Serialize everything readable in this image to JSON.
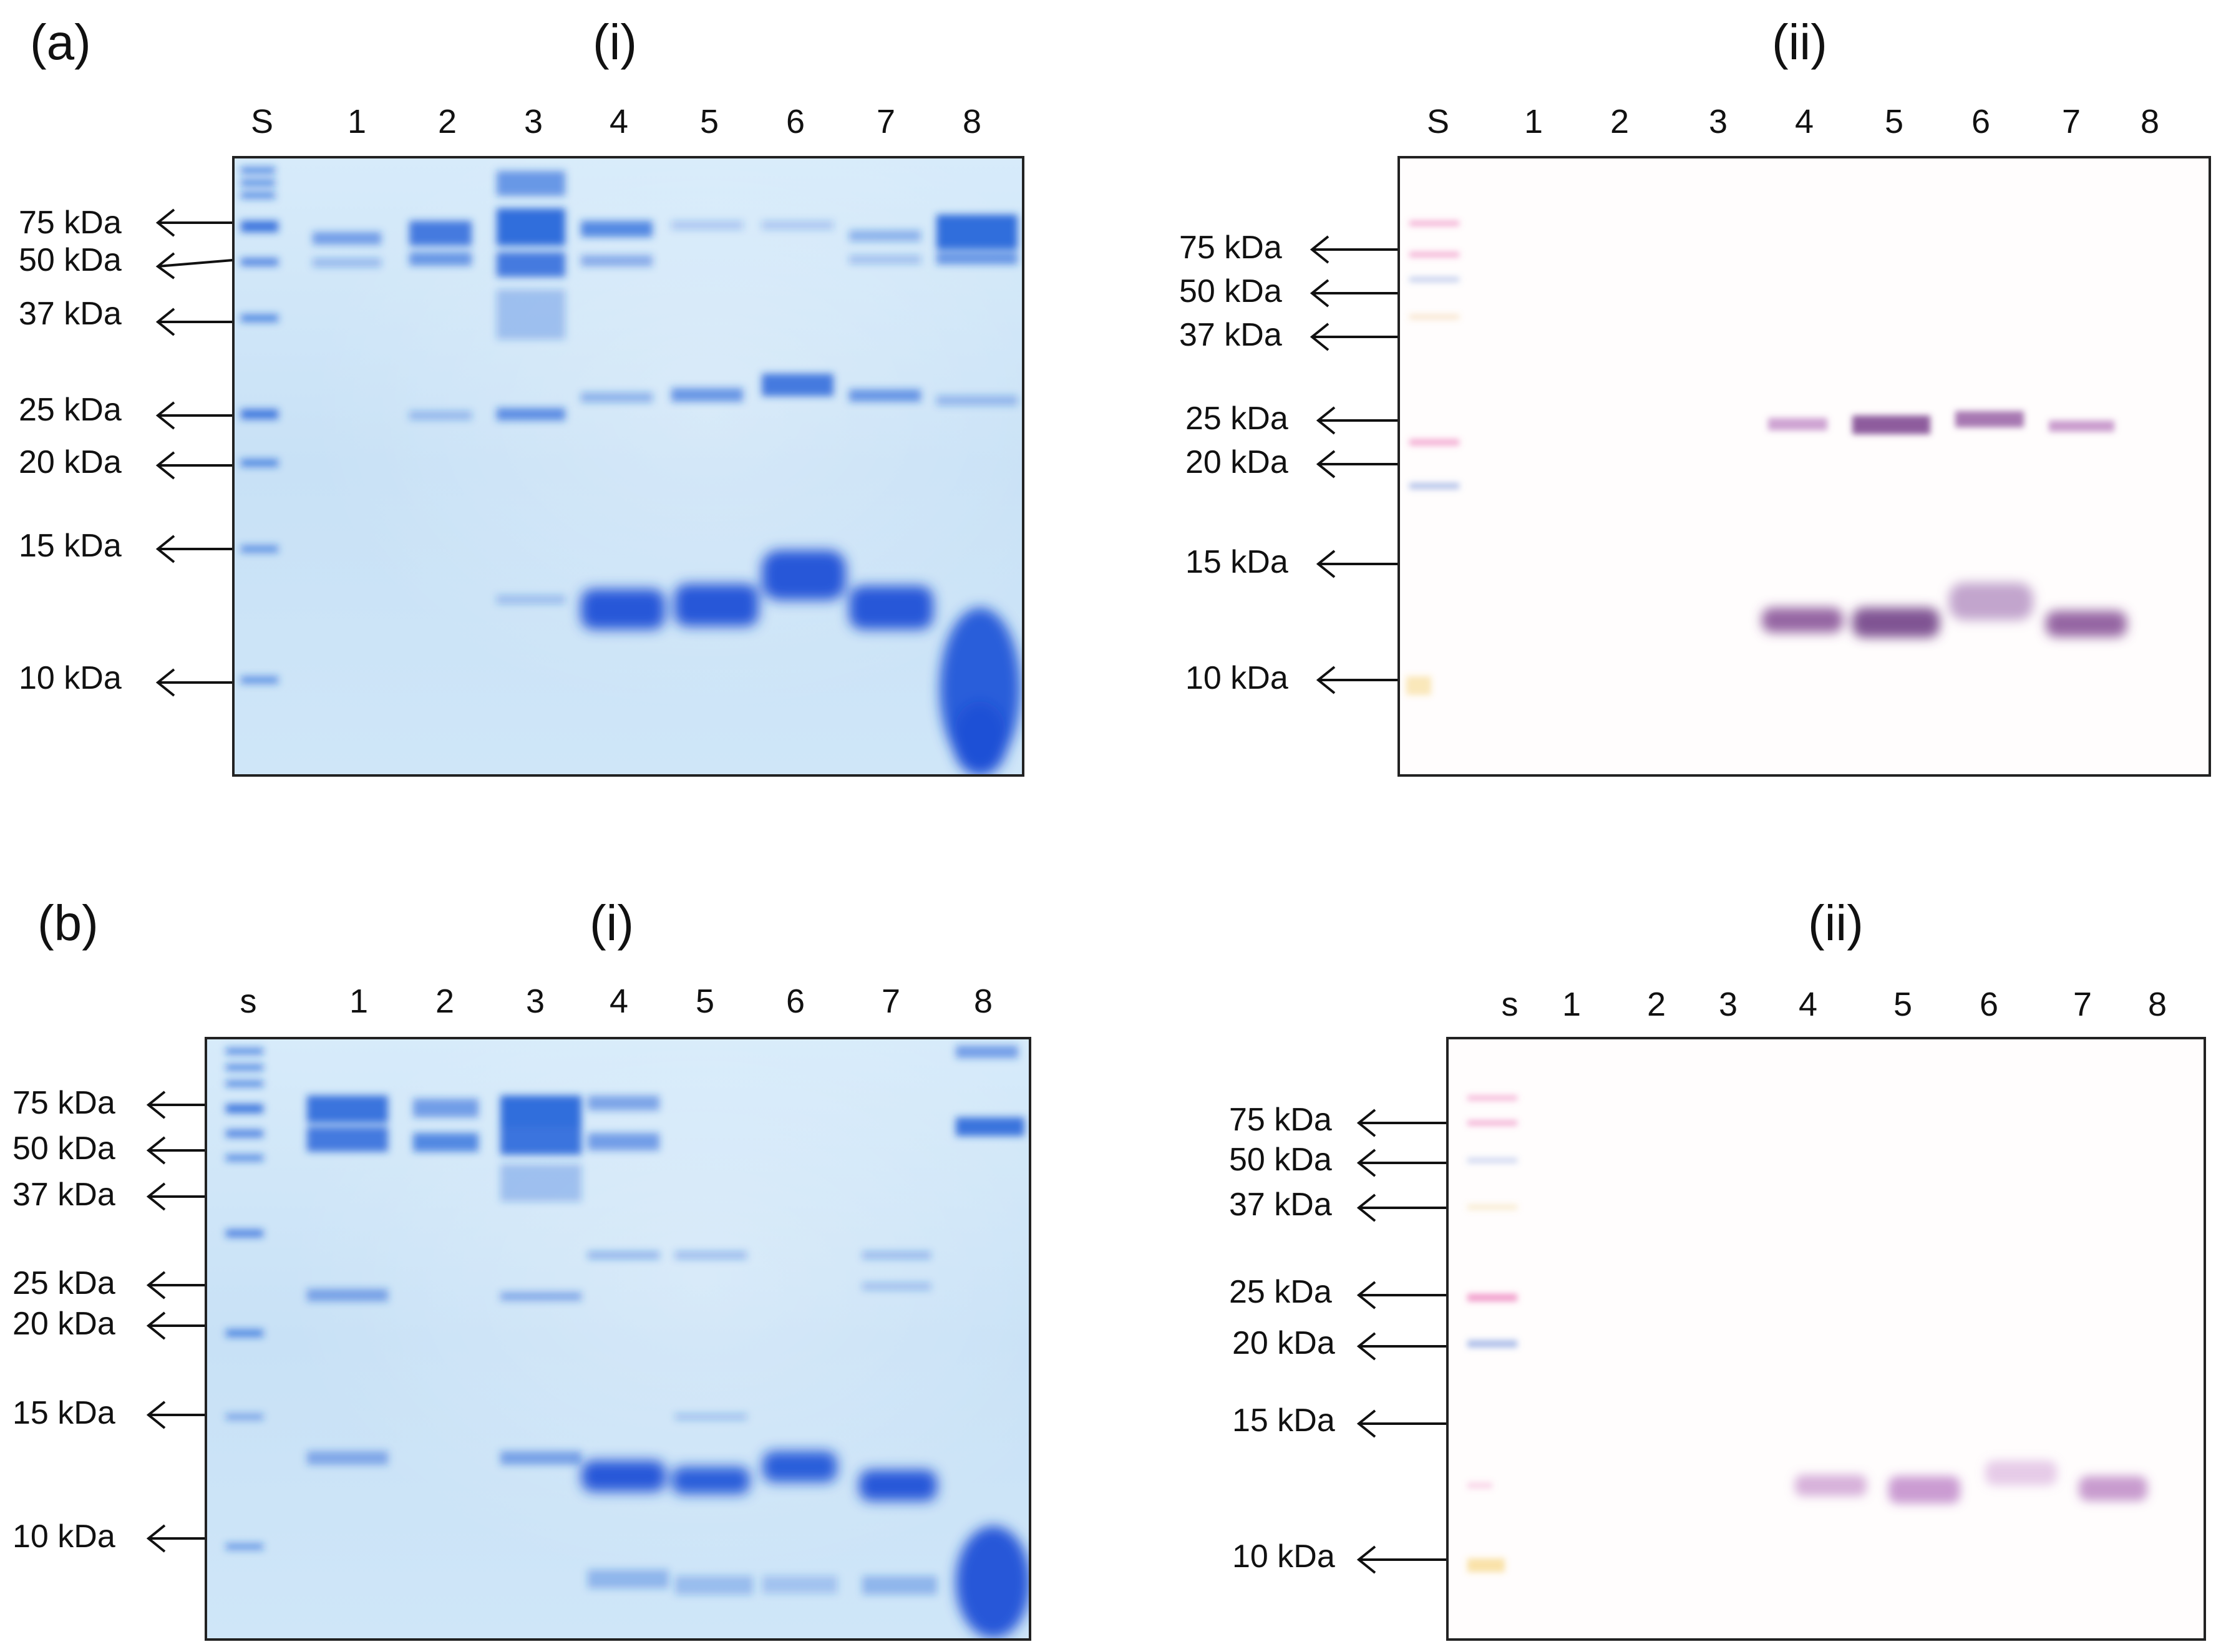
{
  "panels": [
    {
      "label": "(a)",
      "gels": [
        {
          "sub_label": "(i)",
          "type": "stain",
          "lanes": [
            "S",
            "1",
            "2",
            "3",
            "4",
            "5",
            "6",
            "7",
            "8"
          ],
          "markers": [
            "75 kDa",
            "50 kDa",
            "37 kDa",
            "25 kDa",
            "20 kDa",
            "15 kDa",
            "10 kDa"
          ]
        },
        {
          "sub_label": "(ii)",
          "type": "blot",
          "lanes": [
            "S",
            "1",
            "2",
            "3",
            "4",
            "5",
            "6",
            "7",
            "8"
          ],
          "markers": [
            "75 kDa",
            "50 kDa",
            "37 kDa",
            "25 kDa",
            "20 kDa",
            "15 kDa",
            "10 kDa"
          ]
        }
      ]
    },
    {
      "label": "(b)",
      "gels": [
        {
          "sub_label": "(i)",
          "type": "stain",
          "lanes": [
            "s",
            "1",
            "2",
            "3",
            "4",
            "5",
            "6",
            "7",
            "8"
          ],
          "markers": [
            "75 kDa",
            "50 kDa",
            "37 kDa",
            "25 kDa",
            "20 kDa",
            "15 kDa",
            "10 kDa"
          ]
        },
        {
          "sub_label": "(ii)",
          "type": "blot",
          "lanes": [
            "s",
            "1",
            "2",
            "3",
            "4",
            "5",
            "6",
            "7",
            "8"
          ],
          "markers": [
            "75 kDa",
            "50 kDa",
            "37 kDa",
            "25 kDa",
            "20 kDa",
            "15 kDa",
            "10 kDa"
          ]
        }
      ]
    }
  ],
  "colors": {
    "stain_band": "#1f5fd8",
    "stain_background": "#cfe6f8",
    "blot_band": "#7a3f8c",
    "ladder_pink": "#e85aa8",
    "ladder_blue": "#6a8ad8",
    "ladder_yellow": "#f2c040",
    "arrow": "#111111"
  }
}
